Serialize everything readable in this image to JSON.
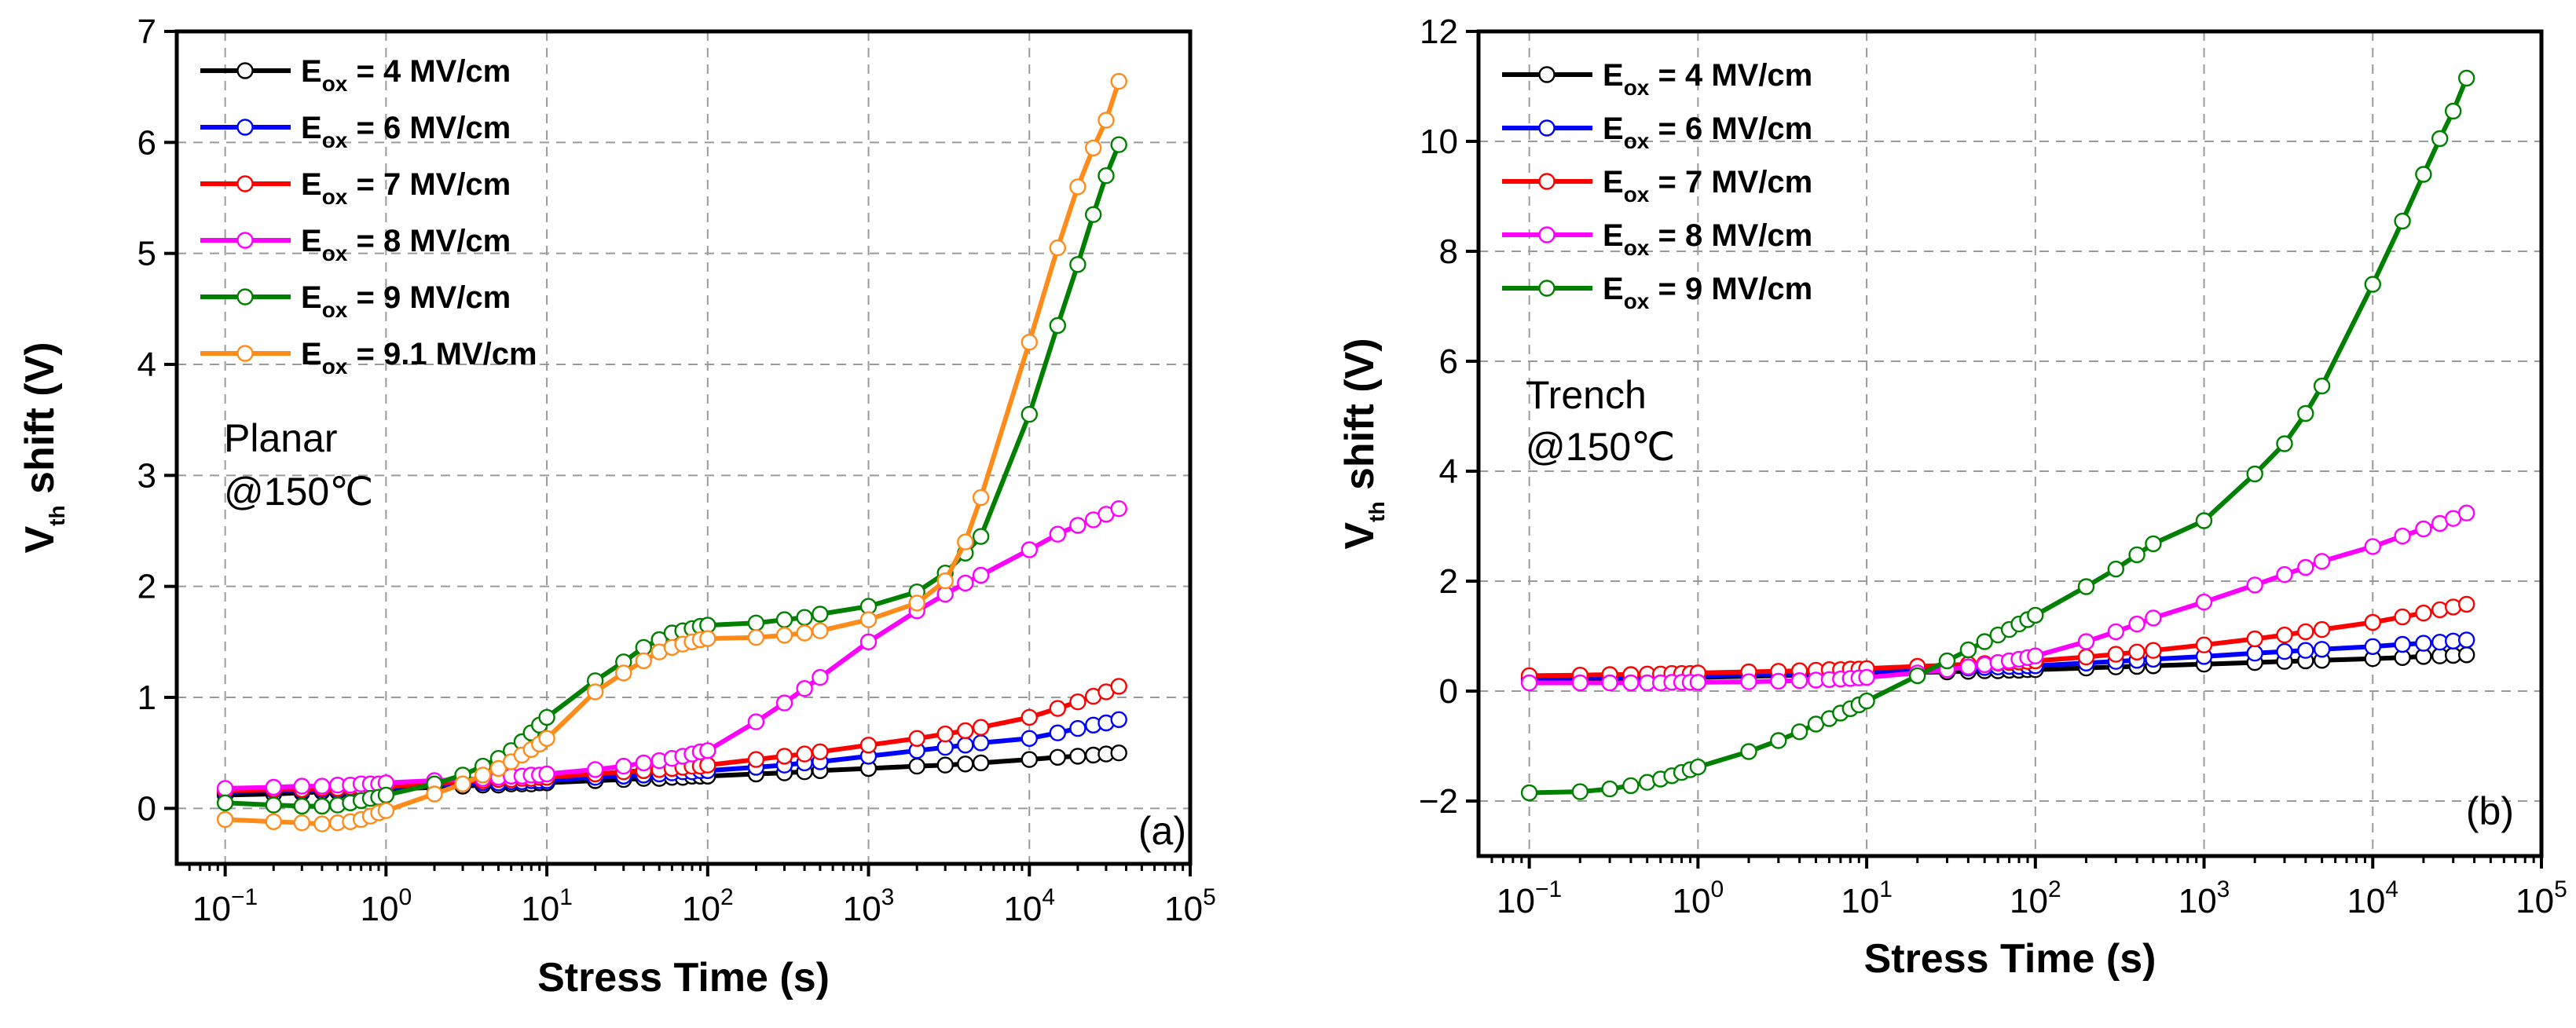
{
  "figure": "Vth shift vs stress time",
  "chart_data": [
    {
      "type": "line",
      "panel_label": "(a)",
      "annotation": [
        "Planar",
        "@150℃"
      ],
      "xlabel": "Stress Time (s)",
      "ylabel": {
        "main": "V",
        "sub": "th",
        "rest": " shift (V)"
      },
      "xscale": "log",
      "xlim": [
        0.05,
        100000
      ],
      "ylim": [
        -0.5,
        7
      ],
      "xticks": [
        {
          "base": "10",
          "exp": "−1",
          "value": 0.1
        },
        {
          "base": "10",
          "exp": "0",
          "value": 1
        },
        {
          "base": "10",
          "exp": "1",
          "value": 10
        },
        {
          "base": "10",
          "exp": "2",
          "value": 100
        },
        {
          "base": "10",
          "exp": "3",
          "value": 1000
        },
        {
          "base": "10",
          "exp": "4",
          "value": 10000
        },
        {
          "base": "10",
          "exp": "5",
          "value": 100000
        }
      ],
      "yticks": [
        0,
        1,
        2,
        3,
        4,
        5,
        6,
        7
      ],
      "grid": true,
      "legend_position": "top-left",
      "x": [
        0.1,
        0.2,
        0.3,
        0.4,
        0.5,
        0.6,
        0.7,
        0.8,
        0.9,
        1,
        2,
        3,
        4,
        5,
        6,
        7,
        8,
        9,
        10,
        20,
        30,
        40,
        50,
        60,
        70,
        80,
        90,
        100,
        200,
        300,
        400,
        500,
        1000,
        2000,
        3000,
        4000,
        5000,
        10000,
        15000,
        20000,
        25000,
        30000,
        36000
      ],
      "series": [
        {
          "name_main": "E",
          "name_sub": "ox",
          "name_rest": " = 4 MV/cm",
          "color": "#000000",
          "values": [
            0.12,
            0.13,
            0.14,
            0.15,
            0.15,
            0.16,
            0.16,
            0.16,
            0.17,
            0.17,
            0.19,
            0.2,
            0.21,
            0.21,
            0.22,
            0.22,
            0.22,
            0.23,
            0.23,
            0.25,
            0.26,
            0.27,
            0.27,
            0.28,
            0.28,
            0.29,
            0.29,
            0.29,
            0.31,
            0.32,
            0.33,
            0.34,
            0.36,
            0.38,
            0.39,
            0.4,
            0.41,
            0.44,
            0.46,
            0.47,
            0.48,
            0.49,
            0.5
          ]
        },
        {
          "name_main": "E",
          "name_sub": "ox",
          "name_rest": " = 6 MV/cm",
          "color": "#0000ff",
          "values": [
            0.15,
            0.16,
            0.16,
            0.17,
            0.17,
            0.18,
            0.18,
            0.18,
            0.19,
            0.19,
            0.21,
            0.22,
            0.23,
            0.23,
            0.24,
            0.24,
            0.25,
            0.25,
            0.25,
            0.28,
            0.29,
            0.3,
            0.31,
            0.32,
            0.33,
            0.33,
            0.34,
            0.34,
            0.37,
            0.39,
            0.41,
            0.42,
            0.47,
            0.52,
            0.55,
            0.57,
            0.59,
            0.63,
            0.68,
            0.72,
            0.75,
            0.77,
            0.8
          ]
        },
        {
          "name_main": "E",
          "name_sub": "ox",
          "name_rest": " = 7 MV/cm",
          "color": "#ff0000",
          "values": [
            0.16,
            0.17,
            0.17,
            0.18,
            0.18,
            0.19,
            0.19,
            0.19,
            0.2,
            0.2,
            0.22,
            0.24,
            0.25,
            0.26,
            0.26,
            0.27,
            0.27,
            0.28,
            0.28,
            0.31,
            0.33,
            0.34,
            0.35,
            0.36,
            0.37,
            0.38,
            0.38,
            0.39,
            0.44,
            0.47,
            0.49,
            0.51,
            0.57,
            0.63,
            0.67,
            0.7,
            0.73,
            0.82,
            0.9,
            0.96,
            1.01,
            1.05,
            1.1
          ]
        },
        {
          "name_main": "E",
          "name_sub": "ox",
          "name_rest": " = 8 MV/cm",
          "color": "#ff00ff",
          "values": [
            0.18,
            0.19,
            0.2,
            0.2,
            0.21,
            0.21,
            0.22,
            0.22,
            0.22,
            0.23,
            0.25,
            0.26,
            0.27,
            0.28,
            0.29,
            0.29,
            0.3,
            0.3,
            0.31,
            0.35,
            0.38,
            0.41,
            0.43,
            0.45,
            0.47,
            0.49,
            0.51,
            0.52,
            0.78,
            0.95,
            1.08,
            1.18,
            1.5,
            1.78,
            1.93,
            2.03,
            2.1,
            2.33,
            2.47,
            2.55,
            2.6,
            2.65,
            2.7
          ]
        },
        {
          "name_main": "E",
          "name_sub": "ox",
          "name_rest": " = 9 MV/cm",
          "color": "#008000",
          "values": [
            0.05,
            0.03,
            0.02,
            0.02,
            0.03,
            0.05,
            0.07,
            0.09,
            0.1,
            0.12,
            0.22,
            0.3,
            0.38,
            0.45,
            0.52,
            0.6,
            0.68,
            0.75,
            0.82,
            1.15,
            1.32,
            1.45,
            1.52,
            1.58,
            1.6,
            1.62,
            1.64,
            1.65,
            1.67,
            1.7,
            1.72,
            1.75,
            1.82,
            1.95,
            2.12,
            2.3,
            2.45,
            3.55,
            4.35,
            4.9,
            5.35,
            5.7,
            5.98
          ]
        },
        {
          "name_main": "E",
          "name_sub": "ox",
          "name_rest": " = 9.1 MV/cm",
          "color": "#ff8c1a",
          "values": [
            -0.1,
            -0.12,
            -0.13,
            -0.14,
            -0.13,
            -0.12,
            -0.1,
            -0.07,
            -0.04,
            -0.02,
            0.13,
            0.22,
            0.3,
            0.36,
            0.42,
            0.48,
            0.53,
            0.58,
            0.63,
            1.05,
            1.22,
            1.33,
            1.41,
            1.45,
            1.48,
            1.5,
            1.52,
            1.53,
            1.54,
            1.56,
            1.58,
            1.6,
            1.7,
            1.85,
            2.05,
            2.4,
            2.8,
            4.2,
            5.05,
            5.6,
            5.95,
            6.2,
            6.55
          ]
        }
      ]
    },
    {
      "type": "line",
      "panel_label": "(b)",
      "annotation": [
        "Trench",
        "@150℃"
      ],
      "xlabel": "Stress Time (s)",
      "ylabel": {
        "main": "V",
        "sub": "th",
        "rest": " shift (V)"
      },
      "xscale": "log",
      "xlim": [
        0.05,
        100000
      ],
      "ylim": [
        -3,
        12
      ],
      "xticks": [
        {
          "base": "10",
          "exp": "−1",
          "value": 0.1
        },
        {
          "base": "10",
          "exp": "0",
          "value": 1
        },
        {
          "base": "10",
          "exp": "1",
          "value": 10
        },
        {
          "base": "10",
          "exp": "2",
          "value": 100
        },
        {
          "base": "10",
          "exp": "3",
          "value": 1000
        },
        {
          "base": "10",
          "exp": "4",
          "value": 10000
        },
        {
          "base": "10",
          "exp": "5",
          "value": 100000
        }
      ],
      "yticks": [
        -2,
        0,
        2,
        4,
        6,
        8,
        10,
        12
      ],
      "ytick_labels": [
        "−2",
        "0",
        "2",
        "4",
        "6",
        "8",
        "10",
        "12"
      ],
      "grid": true,
      "legend_position": "top-left",
      "x": [
        0.1,
        0.2,
        0.3,
        0.4,
        0.5,
        0.6,
        0.7,
        0.8,
        0.9,
        1,
        2,
        3,
        4,
        5,
        6,
        7,
        8,
        9,
        10,
        20,
        30,
        40,
        50,
        60,
        70,
        80,
        90,
        100,
        200,
        300,
        400,
        500,
        1000,
        2000,
        3000,
        4000,
        5000,
        10000,
        15000,
        20000,
        25000,
        30000,
        36000
      ],
      "series": [
        {
          "name_main": "E",
          "name_sub": "ox",
          "name_rest": " = 4 MV/cm",
          "color": "#000000",
          "values": [
            0.2,
            0.21,
            0.22,
            0.22,
            0.23,
            0.23,
            0.24,
            0.24,
            0.24,
            0.25,
            0.27,
            0.28,
            0.29,
            0.3,
            0.3,
            0.31,
            0.31,
            0.32,
            0.32,
            0.34,
            0.35,
            0.36,
            0.37,
            0.37,
            0.38,
            0.38,
            0.39,
            0.39,
            0.42,
            0.44,
            0.45,
            0.46,
            0.49,
            0.52,
            0.54,
            0.55,
            0.56,
            0.59,
            0.61,
            0.63,
            0.64,
            0.65,
            0.66
          ]
        },
        {
          "name_main": "E",
          "name_sub": "ox",
          "name_rest": " = 6 MV/cm",
          "color": "#0000ff",
          "values": [
            0.23,
            0.24,
            0.25,
            0.25,
            0.26,
            0.26,
            0.27,
            0.27,
            0.27,
            0.28,
            0.3,
            0.31,
            0.32,
            0.33,
            0.34,
            0.34,
            0.35,
            0.35,
            0.36,
            0.39,
            0.41,
            0.42,
            0.43,
            0.44,
            0.45,
            0.45,
            0.46,
            0.46,
            0.51,
            0.54,
            0.56,
            0.58,
            0.63,
            0.69,
            0.72,
            0.74,
            0.76,
            0.81,
            0.85,
            0.87,
            0.89,
            0.91,
            0.93
          ]
        },
        {
          "name_main": "E",
          "name_sub": "ox",
          "name_rest": " = 7 MV/cm",
          "color": "#ff0000",
          "values": [
            0.28,
            0.29,
            0.3,
            0.3,
            0.31,
            0.31,
            0.32,
            0.32,
            0.32,
            0.33,
            0.35,
            0.36,
            0.37,
            0.38,
            0.39,
            0.39,
            0.4,
            0.4,
            0.41,
            0.45,
            0.47,
            0.49,
            0.5,
            0.51,
            0.52,
            0.53,
            0.54,
            0.55,
            0.62,
            0.67,
            0.71,
            0.74,
            0.84,
            0.95,
            1.02,
            1.08,
            1.12,
            1.25,
            1.35,
            1.42,
            1.48,
            1.53,
            1.58
          ]
        },
        {
          "name_main": "E",
          "name_sub": "ox",
          "name_rest": " = 8 MV/cm",
          "color": "#ff00ff",
          "values": [
            0.15,
            0.15,
            0.15,
            0.15,
            0.15,
            0.15,
            0.16,
            0.16,
            0.16,
            0.16,
            0.17,
            0.18,
            0.19,
            0.2,
            0.21,
            0.22,
            0.23,
            0.24,
            0.25,
            0.33,
            0.39,
            0.44,
            0.48,
            0.52,
            0.55,
            0.58,
            0.61,
            0.64,
            0.9,
            1.08,
            1.22,
            1.33,
            1.62,
            1.93,
            2.12,
            2.25,
            2.36,
            2.63,
            2.82,
            2.95,
            3.05,
            3.14,
            3.24
          ]
        },
        {
          "name_main": "E",
          "name_sub": "ox",
          "name_rest": " = 9 MV/cm",
          "color": "#008000",
          "values": [
            -1.85,
            -1.83,
            -1.78,
            -1.72,
            -1.66,
            -1.6,
            -1.54,
            -1.48,
            -1.43,
            -1.38,
            -1.1,
            -0.9,
            -0.74,
            -0.6,
            -0.5,
            -0.4,
            -0.32,
            -0.25,
            -0.18,
            0.28,
            0.55,
            0.75,
            0.9,
            1.02,
            1.12,
            1.22,
            1.3,
            1.38,
            1.9,
            2.22,
            2.48,
            2.68,
            3.1,
            3.95,
            4.5,
            5.05,
            5.55,
            7.4,
            8.55,
            9.4,
            10.05,
            10.55,
            11.15
          ]
        }
      ]
    }
  ]
}
